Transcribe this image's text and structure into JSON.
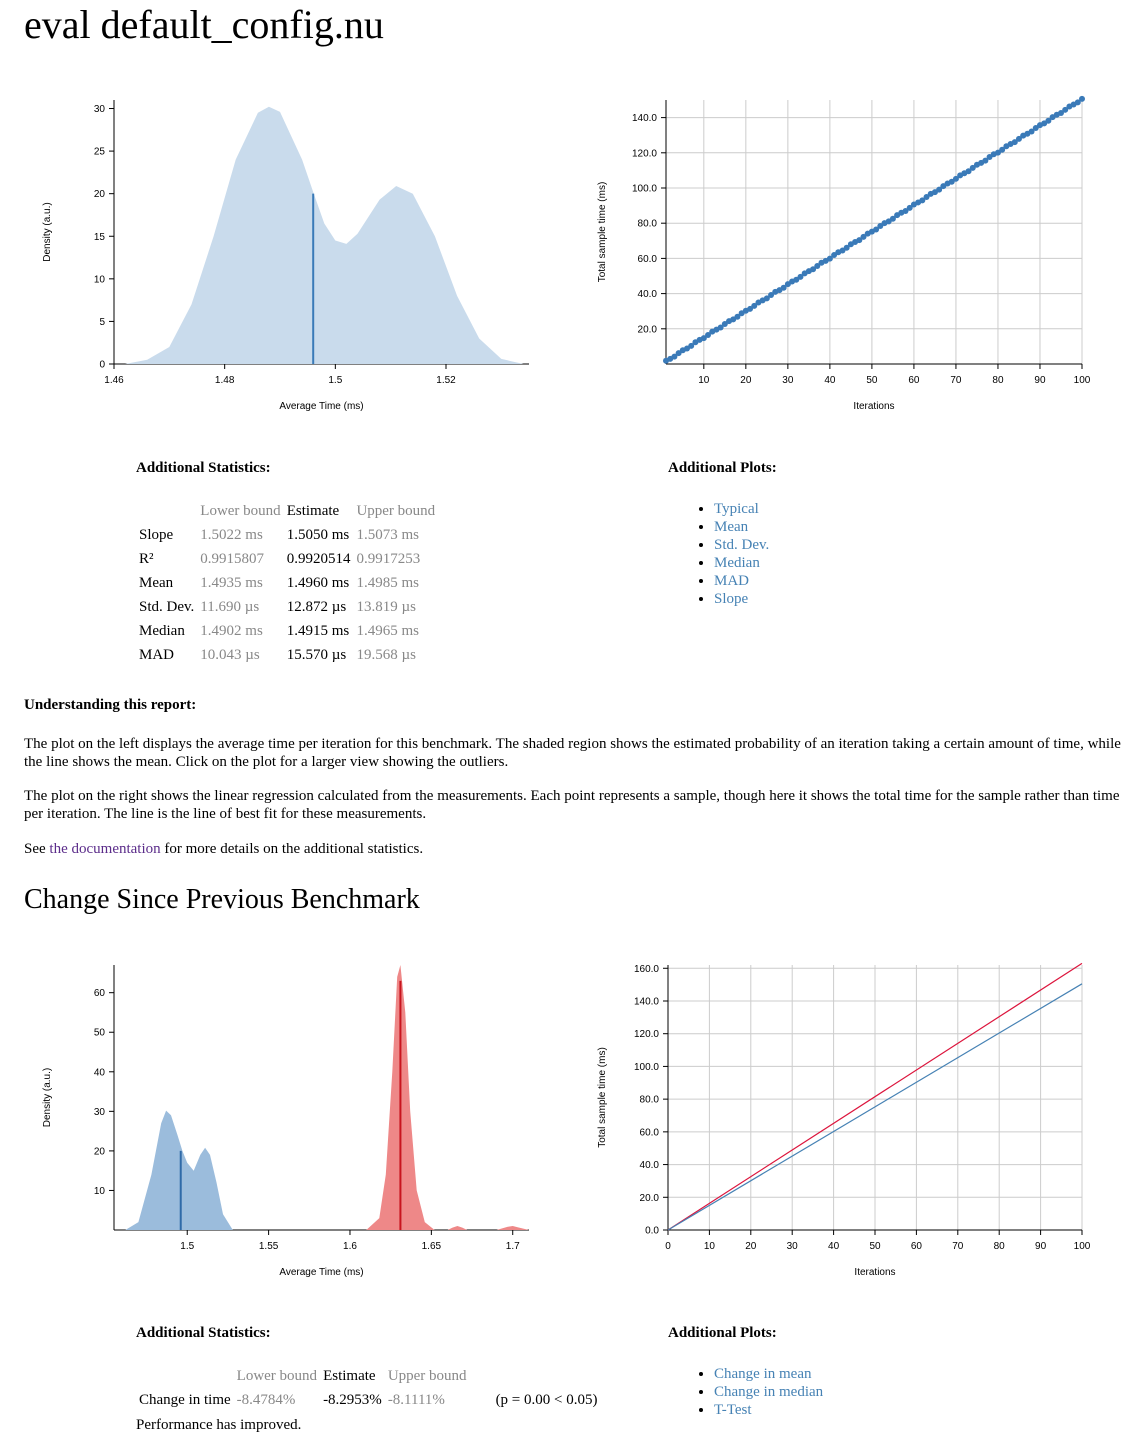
{
  "page_title": "eval default_config.nu",
  "section2_title": "Change Since Previous Benchmark",
  "chart_data": [
    {
      "type": "area",
      "name": "pdf",
      "xlabel": "Average Time (ms)",
      "ylabel": "Density (a.u.)",
      "xlim": [
        1.46,
        1.535
      ],
      "ylim": [
        0,
        31
      ],
      "x_ticks": [
        "1.46",
        "1.48",
        "1.5",
        "1.52"
      ],
      "y_ticks": [
        "0",
        "5",
        "10",
        "15",
        "20",
        "25",
        "30"
      ],
      "density": {
        "x": [
          1.462,
          1.466,
          1.47,
          1.474,
          1.478,
          1.482,
          1.486,
          1.488,
          1.49,
          1.494,
          1.496,
          1.498,
          1.5,
          1.502,
          1.504,
          1.508,
          1.511,
          1.514,
          1.518,
          1.522,
          1.526,
          1.53,
          1.534
        ],
        "y": [
          0,
          0.5,
          2,
          7,
          15,
          24,
          29.5,
          30.2,
          29.6,
          24,
          20.2,
          16.5,
          14.5,
          14.1,
          15.3,
          19.3,
          20.9,
          20,
          15,
          8,
          3,
          0.6,
          0
        ]
      },
      "mean_line": {
        "x": 1.496,
        "y": 20
      }
    },
    {
      "type": "scatter",
      "name": "regression",
      "xlabel": "Iterations",
      "ylabel": "Total sample time (ms)",
      "xlim": [
        1,
        100
      ],
      "ylim": [
        0,
        150
      ],
      "x_ticks": [
        "10",
        "20",
        "30",
        "40",
        "50",
        "60",
        "70",
        "80",
        "90",
        "100"
      ],
      "y_ticks": [
        "20.0",
        "40.0",
        "60.0",
        "80.0",
        "100.0",
        "120.0",
        "140.0"
      ],
      "points": {
        "n_from": 1,
        "n_to": 100,
        "slope_ms": 1.505
      }
    },
    {
      "type": "area",
      "name": "change-pdf",
      "xlabel": "Average Time (ms)",
      "ylabel": "Density (a.u.)",
      "xlim": [
        1.455,
        1.71
      ],
      "ylim": [
        0,
        67
      ],
      "x_ticks": [
        "1.5",
        "1.55",
        "1.6",
        "1.65",
        "1.7"
      ],
      "y_ticks": [
        "10",
        "20",
        "30",
        "40",
        "50",
        "60"
      ],
      "base": {
        "x": [
          1.462,
          1.47,
          1.478,
          1.484,
          1.487,
          1.49,
          1.494,
          1.497,
          1.5,
          1.504,
          1.508,
          1.511,
          1.514,
          1.518,
          1.522,
          1.528
        ],
        "y": [
          0,
          2,
          14,
          27,
          30.2,
          29,
          24,
          20,
          17,
          15,
          19,
          20.8,
          19,
          12,
          4,
          0
        ],
        "mean": {
          "x": 1.496,
          "y": 20
        },
        "color": "#4682b4"
      },
      "new": {
        "x": [
          1.61,
          1.618,
          1.622,
          1.626,
          1.629,
          1.631,
          1.634,
          1.637,
          1.641,
          1.646,
          1.652,
          1.66,
          1.663,
          1.666,
          1.669,
          1.672,
          1.69,
          1.697,
          1.7,
          1.703,
          1.71
        ],
        "y": [
          0,
          3,
          14,
          40,
          64,
          67,
          55,
          30,
          10,
          2,
          0,
          0,
          0.6,
          1,
          0.6,
          0,
          0,
          0.8,
          1,
          0.7,
          0
        ],
        "mean": {
          "x": 1.631,
          "y": 63
        },
        "color": "#dc143c"
      }
    },
    {
      "type": "line",
      "name": "change-regression",
      "xlabel": "Iterations",
      "ylabel": "Total sample time (ms)",
      "xlim": [
        0,
        100
      ],
      "ylim": [
        0,
        162
      ],
      "x_ticks": [
        "0",
        "10",
        "20",
        "30",
        "40",
        "50",
        "60",
        "70",
        "80",
        "90",
        "100"
      ],
      "y_ticks": [
        "0.0",
        "20.0",
        "40.0",
        "60.0",
        "80.0",
        "100.0",
        "120.0",
        "140.0",
        "160.0"
      ],
      "series": [
        {
          "x": [
            0,
            100
          ],
          "y": [
            0,
            163
          ],
          "color": "#dc143c"
        },
        {
          "x": [
            0,
            100
          ],
          "y": [
            0,
            150.5
          ],
          "color": "#4682b4"
        }
      ]
    }
  ],
  "stats1": {
    "title": "Additional Statistics:",
    "headers": [
      "",
      "Lower bound",
      "Estimate",
      "Upper bound"
    ],
    "rows": [
      {
        "label": "Slope",
        "lb": "1.5022 ms",
        "est": "1.5050 ms",
        "ub": "1.5073 ms"
      },
      {
        "label": "R²",
        "lb": "0.9915807",
        "est": "0.9920514",
        "ub": "0.9917253"
      },
      {
        "label": "Mean",
        "lb": "1.4935 ms",
        "est": "1.4960 ms",
        "ub": "1.4985 ms"
      },
      {
        "label": "Std. Dev.",
        "lb": "11.690 µs",
        "est": "12.872 µs",
        "ub": "13.819 µs"
      },
      {
        "label": "Median",
        "lb": "1.4902 ms",
        "est": "1.4915 ms",
        "ub": "1.4965 ms"
      },
      {
        "label": "MAD",
        "lb": "10.043 µs",
        "est": "15.570 µs",
        "ub": "19.568 µs"
      }
    ]
  },
  "plots1": {
    "title": "Additional Plots:",
    "links": [
      "Typical",
      "Mean",
      "Std. Dev.",
      "Median",
      "MAD",
      "Slope"
    ]
  },
  "understanding": {
    "title": "Understanding this report:",
    "p1": "The plot on the left displays the average time per iteration for this benchmark. The shaded region shows the estimated probability of an iteration taking a certain amount of time, while the line shows the mean. Click on the plot for a larger view showing the outliers.",
    "p2": "The plot on the right shows the linear regression calculated from the measurements. Each point represents a sample, though here it shows the total time for the sample rather than time per iteration. The line is the line of best fit for these measurements.",
    "p3_before": "See ",
    "p3_link": "the documentation",
    "p3_after": " for more details on the additional statistics."
  },
  "stats2": {
    "title": "Additional Statistics:",
    "headers": [
      "",
      "Lower bound",
      "Estimate",
      "Upper bound",
      ""
    ],
    "row": {
      "label": "Change in time",
      "lb": "-8.4784%",
      "est": "-8.2953%",
      "ub": "-8.1111%",
      "p": "(p = 0.00 < 0.05)"
    },
    "verdict": "Performance has improved."
  },
  "plots2": {
    "title": "Additional Plots:",
    "links": [
      "Change in mean",
      "Change in median",
      "T-Test"
    ]
  }
}
